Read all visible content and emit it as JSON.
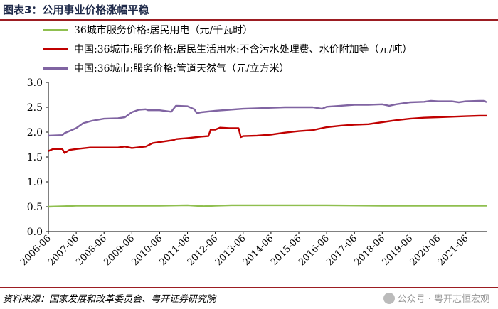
{
  "header": {
    "title": "图表3：公用事业价格涨幅平稳"
  },
  "footer": {
    "source": "资料来源：国家发展和改革委员会、粤开证券研究院",
    "watermark": "公众号 · 粤开志恒宏观"
  },
  "chart_data": {
    "type": "line",
    "title": "图表3：公用事业价格涨幅平稳",
    "xlabel": "",
    "ylabel": "",
    "ylim": [
      0,
      3.0
    ],
    "yticks": [
      "0.0",
      "0.5",
      "1.0",
      "1.5",
      "2.0",
      "2.5",
      "3.0"
    ],
    "xticks": [
      "2006-06",
      "2007-06",
      "2008-06",
      "2009-06",
      "2010-06",
      "2011-06",
      "2012-06",
      "2013-06",
      "2014-06",
      "2015-06",
      "2016-06",
      "2017-06",
      "2018-06",
      "2019-06",
      "2020-06",
      "2021-06"
    ],
    "xrange": [
      "2006-06",
      "2022-03"
    ],
    "grid": false,
    "legend_position": "top",
    "series": [
      {
        "name": "36城市服务价格:居民用电（元/千瓦时）",
        "color": "#8fbf4f",
        "points": [
          [
            "2006-06",
            0.5
          ],
          [
            "2007-01",
            0.51
          ],
          [
            "2007-06",
            0.52
          ],
          [
            "2008-06",
            0.52
          ],
          [
            "2009-06",
            0.52
          ],
          [
            "2010-06",
            0.52
          ],
          [
            "2011-06",
            0.53
          ],
          [
            "2012-01",
            0.51
          ],
          [
            "2012-06",
            0.52
          ],
          [
            "2013-01",
            0.53
          ],
          [
            "2014-06",
            0.53
          ],
          [
            "2016-06",
            0.53
          ],
          [
            "2018-06",
            0.52
          ],
          [
            "2020-06",
            0.52
          ],
          [
            "2022-03",
            0.52
          ]
        ]
      },
      {
        "name": "中国:36城市:服务价格:居民生活用水:不含污水处理费、水价附加等（元/吨）",
        "color": "#c00000",
        "points": [
          [
            "2006-06",
            1.62
          ],
          [
            "2006-08",
            1.66
          ],
          [
            "2006-12",
            1.66
          ],
          [
            "2007-01",
            1.58
          ],
          [
            "2007-03",
            1.64
          ],
          [
            "2007-06",
            1.66
          ],
          [
            "2007-12",
            1.69
          ],
          [
            "2008-06",
            1.69
          ],
          [
            "2008-12",
            1.69
          ],
          [
            "2009-03",
            1.71
          ],
          [
            "2009-06",
            1.68
          ],
          [
            "2009-12",
            1.71
          ],
          [
            "2010-03",
            1.78
          ],
          [
            "2010-06",
            1.8
          ],
          [
            "2010-12",
            1.84
          ],
          [
            "2011-01",
            1.86
          ],
          [
            "2011-06",
            1.88
          ],
          [
            "2011-12",
            1.91
          ],
          [
            "2012-03",
            1.92
          ],
          [
            "2012-04",
            2.05
          ],
          [
            "2012-06",
            2.05
          ],
          [
            "2012-08",
            2.09
          ],
          [
            "2012-12",
            2.08
          ],
          [
            "2013-04",
            2.08
          ],
          [
            "2013-05",
            1.9
          ],
          [
            "2013-06",
            1.92
          ],
          [
            "2013-12",
            1.93
          ],
          [
            "2014-06",
            1.95
          ],
          [
            "2014-12",
            1.99
          ],
          [
            "2015-06",
            2.02
          ],
          [
            "2015-12",
            2.04
          ],
          [
            "2016-06",
            2.1
          ],
          [
            "2016-12",
            2.13
          ],
          [
            "2017-06",
            2.15
          ],
          [
            "2017-12",
            2.16
          ],
          [
            "2018-06",
            2.2
          ],
          [
            "2018-12",
            2.24
          ],
          [
            "2019-06",
            2.27
          ],
          [
            "2019-12",
            2.29
          ],
          [
            "2020-06",
            2.3
          ],
          [
            "2020-12",
            2.31
          ],
          [
            "2021-06",
            2.32
          ],
          [
            "2021-12",
            2.33
          ],
          [
            "2022-03",
            2.33
          ]
        ]
      },
      {
        "name": "中国:36城市:服务价格:管道天然气（元/立方米）",
        "color": "#8064a2",
        "points": [
          [
            "2006-06",
            1.93
          ],
          [
            "2006-12",
            1.94
          ],
          [
            "2007-01",
            1.98
          ],
          [
            "2007-03",
            2.02
          ],
          [
            "2007-06",
            2.08
          ],
          [
            "2007-09",
            2.18
          ],
          [
            "2008-01",
            2.23
          ],
          [
            "2008-06",
            2.27
          ],
          [
            "2008-12",
            2.28
          ],
          [
            "2009-03",
            2.3
          ],
          [
            "2009-06",
            2.4
          ],
          [
            "2009-09",
            2.45
          ],
          [
            "2009-12",
            2.46
          ],
          [
            "2010-01",
            2.44
          ],
          [
            "2010-06",
            2.44
          ],
          [
            "2010-11",
            2.41
          ],
          [
            "2011-01",
            2.53
          ],
          [
            "2011-06",
            2.52
          ],
          [
            "2011-09",
            2.46
          ],
          [
            "2011-10",
            2.38
          ],
          [
            "2011-12",
            2.4
          ],
          [
            "2012-06",
            2.43
          ],
          [
            "2012-12",
            2.45
          ],
          [
            "2013-06",
            2.47
          ],
          [
            "2013-12",
            2.48
          ],
          [
            "2014-06",
            2.49
          ],
          [
            "2014-12",
            2.5
          ],
          [
            "2015-06",
            2.5
          ],
          [
            "2015-12",
            2.5
          ],
          [
            "2016-04",
            2.47
          ],
          [
            "2016-06",
            2.51
          ],
          [
            "2016-12",
            2.53
          ],
          [
            "2017-06",
            2.55
          ],
          [
            "2017-12",
            2.55
          ],
          [
            "2018-06",
            2.56
          ],
          [
            "2018-09",
            2.53
          ],
          [
            "2018-12",
            2.56
          ],
          [
            "2019-06",
            2.6
          ],
          [
            "2019-12",
            2.61
          ],
          [
            "2020-03",
            2.63
          ],
          [
            "2020-06",
            2.62
          ],
          [
            "2020-12",
            2.62
          ],
          [
            "2021-03",
            2.6
          ],
          [
            "2021-06",
            2.62
          ],
          [
            "2021-12",
            2.63
          ],
          [
            "2022-02",
            2.63
          ],
          [
            "2022-03",
            2.6
          ]
        ]
      }
    ]
  }
}
